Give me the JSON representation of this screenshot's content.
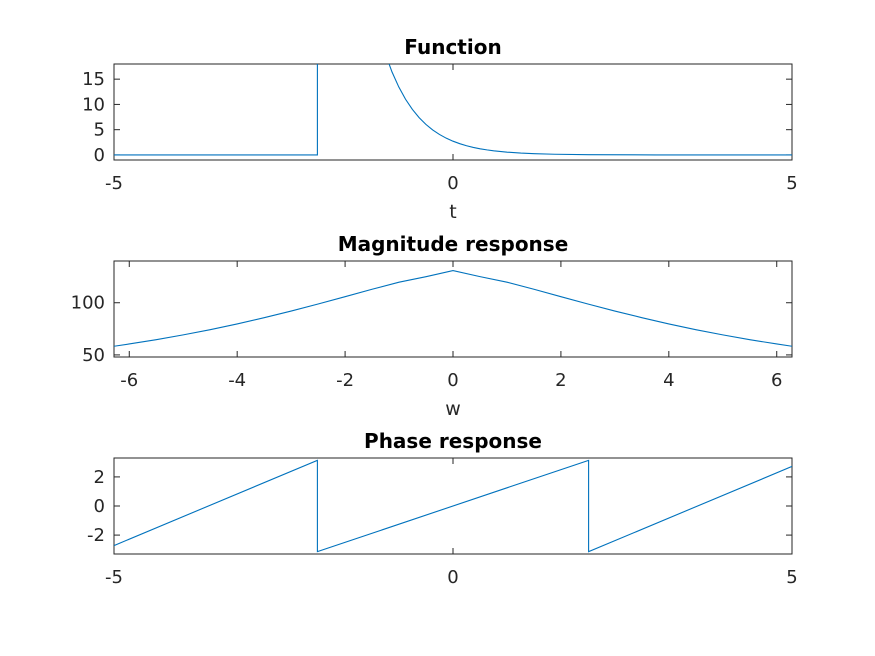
{
  "figure": {
    "background": "#ffffff",
    "line_color": "#0072bd"
  },
  "chart_data": [
    {
      "type": "line",
      "title": "Function",
      "xlabel": "t",
      "ylabel": "",
      "xlim": [
        -5,
        5
      ],
      "ylim": [
        -1,
        18
      ],
      "xticks": [
        -5,
        0,
        5
      ],
      "xtick_labels": [
        "-5",
        "0",
        "5"
      ],
      "yticks": [
        0,
        5,
        10,
        15
      ],
      "ytick_labels": [
        "0",
        "5",
        "10",
        "15"
      ],
      "grid": false,
      "series": [
        {
          "x": [
            -5,
            -2,
            -2,
            -1.0,
            -0.9,
            -0.8,
            -0.7,
            -0.6,
            -0.5,
            -0.4,
            -0.3,
            -0.2,
            -0.1,
            0,
            0.1,
            0.2,
            0.3,
            0.4,
            0.5,
            0.6,
            0.8,
            1.0,
            1.2,
            1.5,
            2.0,
            3.0,
            5.0
          ],
          "y": [
            0,
            0,
            20,
            20.09,
            16.44,
            13.46,
            11.02,
            9.03,
            7.39,
            6.05,
            4.95,
            4.06,
            3.32,
            2.72,
            2.23,
            1.82,
            1.49,
            1.22,
            1.0,
            0.82,
            0.55,
            0.37,
            0.25,
            0.14,
            0.05,
            0.01,
            0
          ]
        }
      ]
    },
    {
      "type": "line",
      "title": "Magnitude response",
      "xlabel": "w",
      "ylabel": "",
      "xlim": [
        -6.283,
        6.283
      ],
      "ylim": [
        48,
        140
      ],
      "xticks": [
        -6,
        -4,
        -2,
        0,
        2,
        4,
        6
      ],
      "xtick_labels": [
        "-6",
        "-4",
        "-2",
        "0",
        "2",
        "4",
        "6"
      ],
      "yticks": [
        50,
        100
      ],
      "ytick_labels": [
        "50",
        "100"
      ],
      "grid": false,
      "series": [
        {
          "x": [
            -6.283,
            -6,
            -5.5,
            -5,
            -4.5,
            -4,
            -3.5,
            -3,
            -2.5,
            -2,
            -1.5,
            -1,
            -0.5,
            0,
            0.5,
            1,
            1.5,
            2,
            2.5,
            3,
            3.5,
            4,
            4.5,
            5,
            5.5,
            6,
            6.283
          ],
          "y": [
            58.3,
            60.5,
            64.6,
            69.2,
            74.2,
            79.7,
            85.7,
            92.0,
            98.8,
            105.8,
            112.9,
            119.7,
            125.0,
            130.8,
            125.0,
            119.7,
            112.9,
            105.8,
            98.8,
            92.0,
            85.7,
            79.7,
            74.2,
            69.2,
            64.6,
            60.5,
            58.3
          ]
        }
      ]
    },
    {
      "type": "line",
      "title": "Phase response",
      "xlabel": "",
      "ylabel": "",
      "xlim": [
        -5,
        5
      ],
      "ylim": [
        -3.3,
        3.3
      ],
      "xticks": [
        -5,
        0,
        5
      ],
      "xtick_labels": [
        "-5",
        "0",
        "5"
      ],
      "yticks": [
        -2,
        0,
        2
      ],
      "ytick_labels": [
        "-2",
        "0",
        "2"
      ],
      "grid": false,
      "series": [
        {
          "x": [
            -5,
            -2.0,
            -2.0,
            2.0,
            2.0,
            5
          ],
          "y": [
            -2.72,
            3.14,
            -3.14,
            3.14,
            -3.14,
            2.72
          ]
        }
      ]
    }
  ]
}
